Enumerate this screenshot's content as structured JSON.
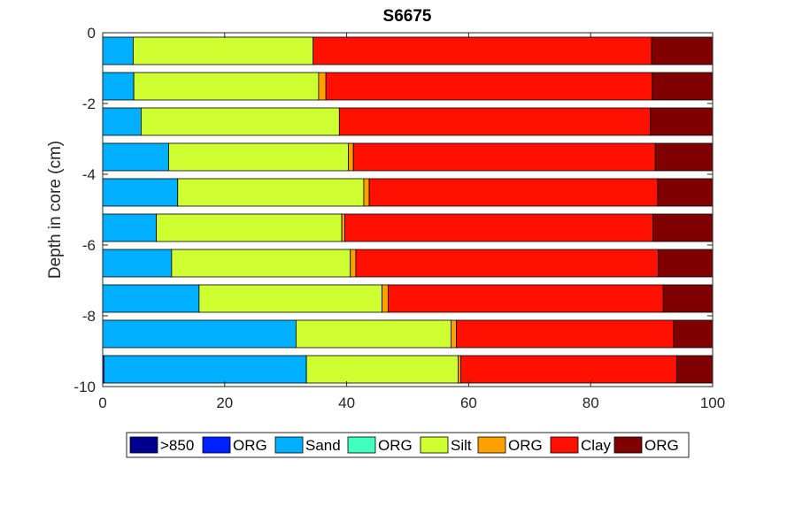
{
  "chart_data": {
    "type": "bar",
    "orientation": "horizontal",
    "stacked": true,
    "title": "S6675",
    "xlabel": "",
    "ylabel": "Depth in core (cm)",
    "xlim": [
      0,
      100
    ],
    "ylim": [
      -10,
      0
    ],
    "xticks": [
      "0",
      "20",
      "40",
      "60",
      "80",
      "100"
    ],
    "yticks": [
      "0",
      "-2",
      "-4",
      "-6",
      "-8",
      "-10"
    ],
    "depth_intervals": [
      [
        0,
        -1
      ],
      [
        -1,
        -2
      ],
      [
        -2,
        -3
      ],
      [
        -3,
        -4
      ],
      [
        -4,
        -5
      ],
      [
        -5,
        -6
      ],
      [
        -6,
        -7
      ],
      [
        -7,
        -8
      ],
      [
        -8,
        -9
      ],
      [
        -9,
        -10
      ]
    ],
    "legend_position": "bottom",
    "series": [
      {
        "name": ">850",
        "color": "#00008F",
        "values": [
          0,
          0,
          0,
          0,
          0,
          0,
          0,
          0,
          0,
          0
        ]
      },
      {
        "name": "ORG",
        "color": "#0020FF",
        "values": [
          0,
          0,
          0,
          0,
          0,
          0,
          0,
          0,
          0,
          0.2
        ]
      },
      {
        "name": "Sand",
        "color": "#00AFFF",
        "values": [
          5,
          5.1,
          6.3,
          10.8,
          12.3,
          8.8,
          11.3,
          15.8,
          31.7,
          33.2
        ]
      },
      {
        "name": "ORG",
        "color": "#40FFBF",
        "values": [
          0,
          0,
          0,
          0,
          0,
          0,
          0,
          0,
          0,
          0
        ]
      },
      {
        "name": "Silt",
        "color": "#CFFF30",
        "values": [
          29.5,
          30.3,
          32.5,
          29.5,
          30.5,
          30.4,
          29.3,
          30,
          25.4,
          24.9
        ]
      },
      {
        "name": "ORG",
        "color": "#FF9F00",
        "values": [
          0,
          1.2,
          0,
          0.8,
          0.9,
          0.5,
          0.9,
          1,
          0.9,
          0.4
        ]
      },
      {
        "name": "Clay",
        "color": "#FF1000",
        "values": [
          55.5,
          53.5,
          51,
          49.5,
          47.3,
          50.5,
          49.6,
          45.1,
          35.6,
          35.4
        ]
      },
      {
        "name": "ORG",
        "color": "#800000",
        "values": [
          10,
          9.9,
          10.2,
          9.4,
          9.0,
          9.8,
          8.9,
          8.1,
          6.4,
          5.9
        ]
      }
    ]
  }
}
